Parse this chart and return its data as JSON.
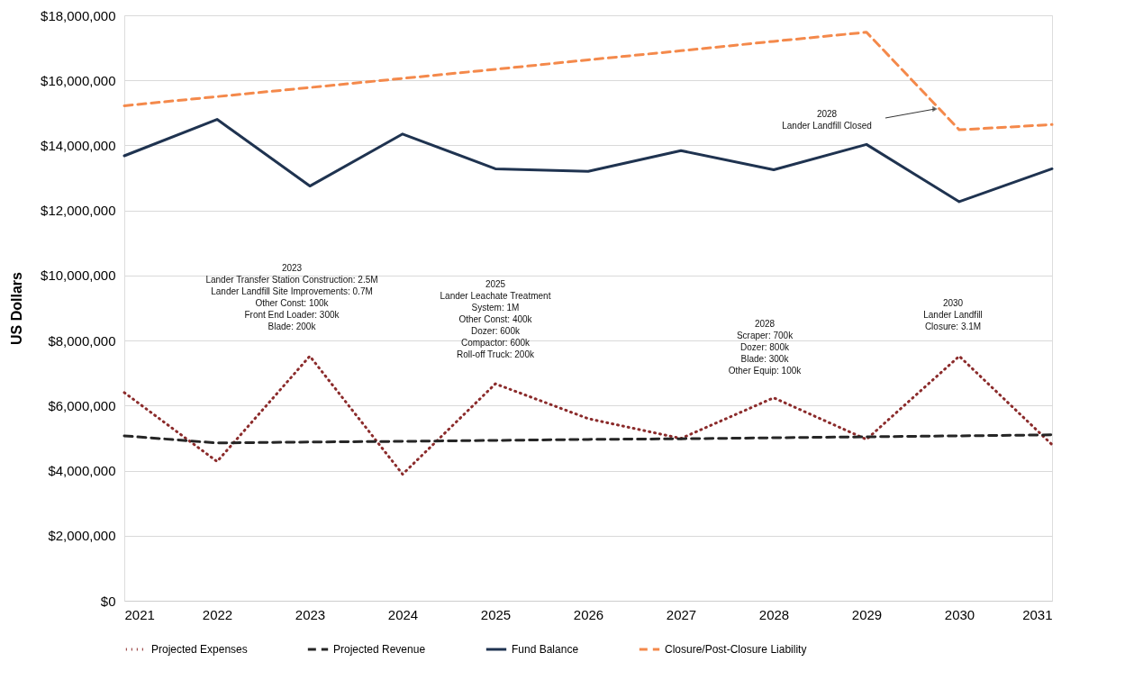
{
  "chart_data": {
    "type": "line",
    "ylabel": "US Dollars",
    "x": [
      2021,
      2022,
      2023,
      2024,
      2025,
      2026,
      2027,
      2028,
      2029,
      2030,
      2031
    ],
    "series": [
      {
        "name": "Projected Expenses",
        "color": "#8b2b2b",
        "line_style": "dotted",
        "values": [
          6400000,
          4280000,
          7520000,
          3890000,
          6670000,
          5600000,
          4990000,
          6240000,
          4960000,
          7520000,
          4800000
        ]
      },
      {
        "name": "Projected Revenue",
        "color": "#262626",
        "line_style": "dashed",
        "values": [
          5070000,
          4850000,
          4880000,
          4900000,
          4930000,
          4960000,
          4980000,
          5010000,
          5040000,
          5070000,
          5100000
        ]
      },
      {
        "name": "Fund Balance",
        "color": "#1f3350",
        "line_style": "solid",
        "values": [
          13680000,
          14800000,
          12750000,
          14350000,
          13280000,
          13200000,
          13840000,
          13250000,
          14030000,
          12270000,
          13280000
        ]
      },
      {
        "name": "Closure/Post-Closure Liability",
        "color": "#f4894b",
        "line_style": "dashed",
        "values": [
          15220000,
          15500000,
          15780000,
          16060000,
          16340000,
          16630000,
          16910000,
          17200000,
          17480000,
          14480000,
          14640000
        ]
      }
    ],
    "xlim": [
      2021,
      2031
    ],
    "xticks": [
      2021,
      2022,
      2023,
      2024,
      2025,
      2026,
      2027,
      2028,
      2029,
      2030,
      2031
    ],
    "ylim": [
      0,
      18000000
    ],
    "yticks": [
      {
        "value": 0,
        "label": "$0"
      },
      {
        "value": 2000000,
        "label": "$2,000,000"
      },
      {
        "value": 4000000,
        "label": "$4,000,000"
      },
      {
        "value": 6000000,
        "label": "$6,000,000"
      },
      {
        "value": 8000000,
        "label": "$8,000,000"
      },
      {
        "value": 10000000,
        "label": "$10,000,000"
      },
      {
        "value": 12000000,
        "label": "$12,000,000"
      },
      {
        "value": 14000000,
        "label": "$14,000,000"
      },
      {
        "value": 16000000,
        "label": "$16,000,000"
      },
      {
        "value": 18000000,
        "label": "$18,000,000"
      }
    ],
    "grid": "y",
    "legend": "bottom",
    "marker": "none",
    "annotations": [
      "2028\nLander Landfill Closed",
      {
        "text": "2023\nLander Transfer Station Construction: 2.5M\nLander Landfill Site Improvements: 0.7M\nOther Const: 100k\nFront End Loader: 300k\nBlade: 200k",
        "x": 2023,
        "y": 7520000
      },
      {
        "text": "2025\nLander Leachate Treatment\nSystem: 1M\nOther Const: 400k\nDozer: 600k\nCompactor: 600k\nRoll-off Truck: 200k",
        "x": 2025,
        "y": 6670000
      },
      {
        "text": "2028\nScraper: 700k\nDozer: 800k\nBlade: 300k\nOther Equip: 100k",
        "x": 2028,
        "y": 6240000
      },
      {
        "text": "2030\nLander Landfill\nClosure: 3.1M",
        "x": 2030,
        "y": 7520000
      }
    ]
  }
}
